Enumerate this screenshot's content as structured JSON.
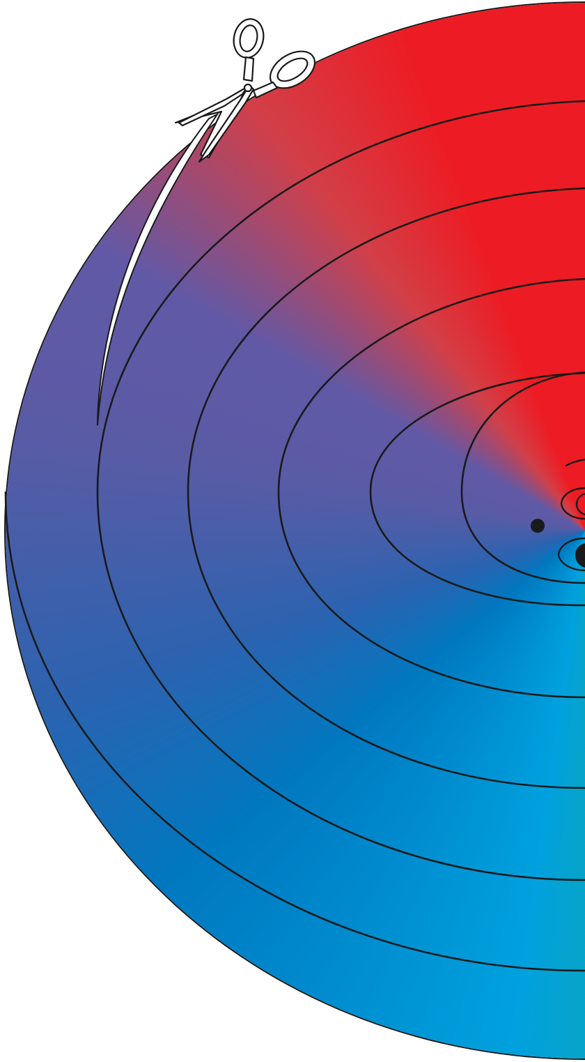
{
  "image": {
    "subject": "spiral-cut-color-wheel-with-scissors",
    "colors": {
      "red": "#ed1c24",
      "green": "#22b573",
      "cyan": "#00a1de",
      "blue": "#0078c0",
      "purple": "#6159a6",
      "outline": "#1a1a1a",
      "background": "#ffffff"
    },
    "icons": [
      "scissors-icon",
      "eye-icon",
      "eye-icon"
    ]
  }
}
